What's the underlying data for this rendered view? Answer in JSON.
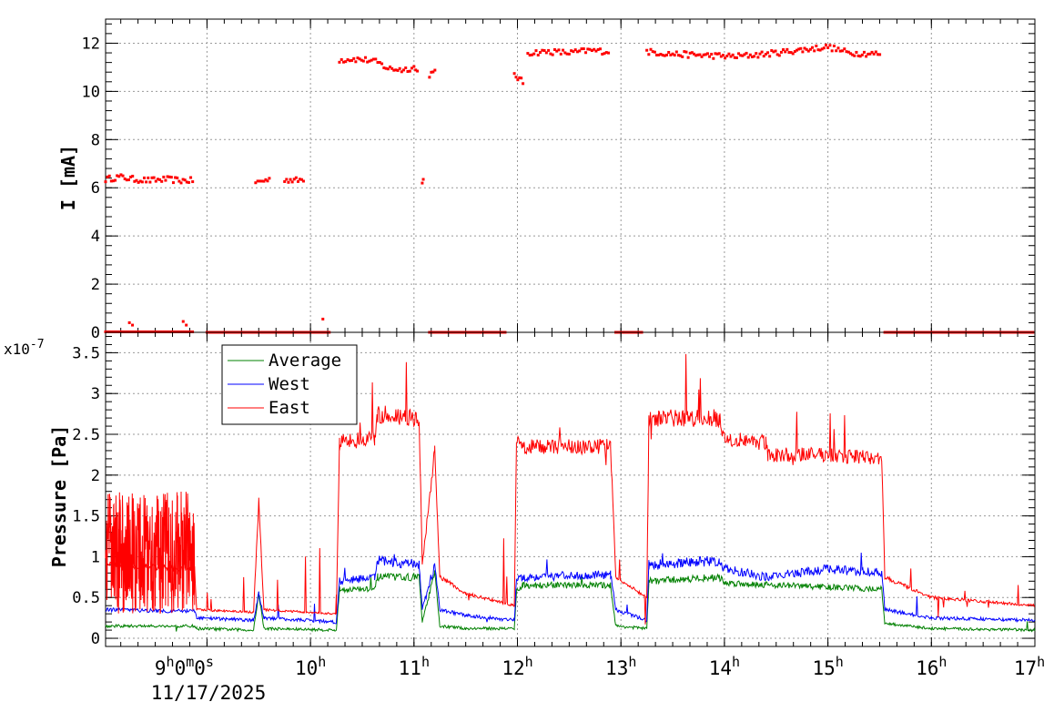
{
  "chart_data": [
    {
      "type": "scatter",
      "ylabel": "I [mA]",
      "xlim_hours": [
        8.02,
        17.0
      ],
      "ylim": [
        0,
        13
      ],
      "yticks": [
        "0",
        "2",
        "4",
        "6",
        "8",
        "10",
        "12"
      ],
      "grid": true,
      "color": "#ff0000",
      "series": [
        {
          "segments": [
            {
              "x": [
                8.02,
                8.15,
                8.3,
                8.45,
                8.6,
                8.75,
                8.88
              ],
              "y": [
                6.35,
                6.45,
                6.35,
                6.3,
                6.35,
                6.3,
                6.3
              ]
            },
            {
              "x": [
                9.47,
                9.55,
                9.62
              ],
              "y": [
                6.2,
                6.3,
                6.35
              ]
            },
            {
              "x": [
                9.75,
                9.88,
                9.95
              ],
              "y": [
                6.35,
                6.3,
                6.4
              ]
            },
            {
              "x": [
                10.28,
                10.4,
                10.55,
                10.65,
                10.75,
                10.9,
                11.0,
                11.05
              ],
              "y": [
                11.3,
                11.35,
                11.3,
                11.2,
                10.95,
                10.9,
                11.0,
                10.7
              ]
            },
            {
              "x": [
                11.08,
                11.1
              ],
              "y": [
                6.3,
                6.3
              ]
            },
            {
              "x": [
                11.15,
                11.22
              ],
              "y": [
                10.7,
                10.8
              ]
            },
            {
              "x": [
                11.97,
                12.02,
                12.07
              ],
              "y": [
                10.7,
                10.5,
                10.3
              ]
            },
            {
              "x": [
                12.1,
                12.3,
                12.5,
                12.7,
                12.9
              ],
              "y": [
                11.6,
                11.65,
                11.6,
                11.7,
                11.65
              ]
            },
            {
              "x": [
                13.25,
                13.5,
                13.8,
                14.1,
                14.4,
                14.7,
                15.0,
                15.2,
                15.52
              ],
              "y": [
                11.65,
                11.55,
                11.5,
                11.45,
                11.55,
                11.7,
                11.85,
                11.6,
                11.55
              ]
            },
            {
              "x": [
                8.02,
                8.88
              ],
              "y": [
                0.02,
                0.02
              ]
            },
            {
              "x": [
                9.0,
                9.3,
                9.6,
                9.9,
                10.2
              ],
              "y": [
                0.0,
                0.0,
                0.0,
                0.0,
                0.0
              ]
            },
            {
              "x": [
                11.15,
                11.5,
                11.9
              ],
              "y": [
                0.0,
                0.0,
                0.0
              ]
            },
            {
              "x": [
                12.95,
                13.22
              ],
              "y": [
                0.0,
                0.0
              ]
            },
            {
              "x": [
                15.55,
                16.0,
                16.5,
                17.0
              ],
              "y": [
                0.0,
                0.0,
                0.0,
                0.0
              ]
            }
          ],
          "outliers": {
            "x": [
              8.25,
              8.28,
              8.77,
              8.8,
              10.12
            ],
            "y": [
              0.4,
              0.3,
              0.45,
              0.3,
              0.55
            ]
          }
        }
      ]
    },
    {
      "type": "line",
      "ylabel": "Pressure [Pa]",
      "y_multiplier": "x10",
      "y_multiplier_exp": "-7",
      "xlim_hours": [
        8.02,
        17.0
      ],
      "ylim": [
        -0.1,
        3.75
      ],
      "yticks": [
        "0",
        "0.5",
        "1",
        "1.5",
        "2",
        "2.5",
        "3",
        "3.5"
      ],
      "grid": true,
      "legend_position": "top-left",
      "series": [
        {
          "name": "Average",
          "color": "#008000",
          "x": [
            8.02,
            8.88,
            8.9,
            9.45,
            9.5,
            9.55,
            10.25,
            10.28,
            10.62,
            10.65,
            11.05,
            11.08,
            11.2,
            11.25,
            11.5,
            11.97,
            11.99,
            12.05,
            12.9,
            12.95,
            13.25,
            13.27,
            13.95,
            14.0,
            15.52,
            15.55,
            16.0,
            17.0
          ],
          "y": [
            0.15,
            0.15,
            0.12,
            0.1,
            0.55,
            0.12,
            0.1,
            0.6,
            0.6,
            0.75,
            0.75,
            0.2,
            0.8,
            0.15,
            0.12,
            0.12,
            0.58,
            0.65,
            0.65,
            0.15,
            0.12,
            0.7,
            0.75,
            0.68,
            0.6,
            0.18,
            0.12,
            0.1
          ]
        },
        {
          "name": "West",
          "color": "#0000ff",
          "x": [
            8.02,
            8.88,
            8.9,
            9.45,
            9.5,
            9.55,
            10.25,
            10.28,
            10.62,
            10.65,
            11.05,
            11.08,
            11.2,
            11.25,
            11.5,
            11.97,
            11.99,
            12.05,
            12.9,
            12.95,
            13.25,
            13.27,
            13.95,
            14.0,
            14.4,
            15.0,
            15.52,
            15.55,
            16.0,
            17.0
          ],
          "y": [
            0.35,
            0.33,
            0.25,
            0.22,
            0.55,
            0.25,
            0.2,
            0.7,
            0.75,
            0.95,
            0.9,
            0.35,
            0.9,
            0.35,
            0.28,
            0.22,
            0.72,
            0.75,
            0.78,
            0.35,
            0.22,
            0.9,
            0.95,
            0.85,
            0.75,
            0.85,
            0.8,
            0.35,
            0.25,
            0.22
          ]
        },
        {
          "name": "East",
          "color": "#ff0000",
          "x": [
            8.02,
            8.88,
            8.9,
            9.45,
            9.5,
            9.55,
            10.25,
            10.28,
            10.62,
            10.65,
            11.05,
            11.08,
            11.2,
            11.25,
            11.5,
            11.97,
            11.99,
            12.05,
            12.9,
            12.95,
            13.25,
            13.27,
            13.95,
            14.0,
            14.4,
            14.42,
            15.0,
            15.52,
            15.55,
            16.0,
            17.0
          ],
          "y": [
            0.9,
            0.85,
            0.35,
            0.32,
            1.7,
            0.35,
            0.3,
            2.4,
            2.45,
            2.75,
            2.7,
            0.9,
            2.3,
            0.75,
            0.55,
            0.4,
            2.4,
            2.35,
            2.35,
            0.75,
            0.5,
            2.7,
            2.7,
            2.45,
            2.4,
            2.25,
            2.25,
            2.2,
            0.75,
            0.5,
            0.4
          ]
        }
      ]
    }
  ],
  "time_axis": {
    "ticks": [
      {
        "hour": 9,
        "base": "9",
        "parts": [
          [
            "h",
            "0"
          ],
          [
            "m",
            "0"
          ],
          [
            "s",
            ""
          ]
        ]
      },
      {
        "hour": 10,
        "base": "10",
        "parts": [
          [
            "h",
            ""
          ]
        ]
      },
      {
        "hour": 11,
        "base": "11",
        "parts": [
          [
            "h",
            ""
          ]
        ]
      },
      {
        "hour": 12,
        "base": "12",
        "parts": [
          [
            "h",
            ""
          ]
        ]
      },
      {
        "hour": 13,
        "base": "13",
        "parts": [
          [
            "h",
            ""
          ]
        ]
      },
      {
        "hour": 14,
        "base": "14",
        "parts": [
          [
            "h",
            ""
          ]
        ]
      },
      {
        "hour": 15,
        "base": "15",
        "parts": [
          [
            "h",
            ""
          ]
        ]
      },
      {
        "hour": 16,
        "base": "16",
        "parts": [
          [
            "h",
            ""
          ]
        ]
      },
      {
        "hour": 17,
        "base": "17",
        "parts": [
          [
            "h",
            ""
          ]
        ]
      }
    ],
    "date": "11/17/2025"
  }
}
